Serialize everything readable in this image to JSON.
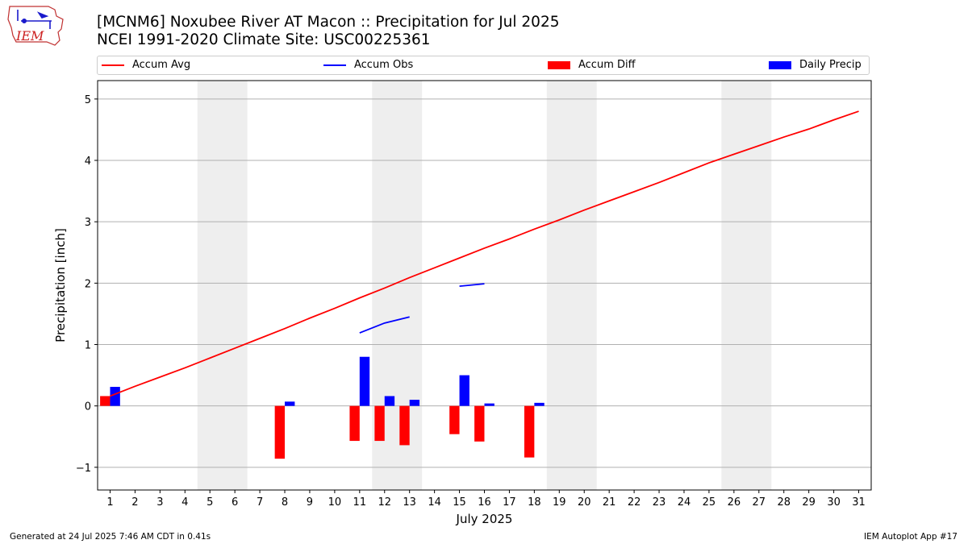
{
  "header": {
    "title_line1": "[MCNM6] Noxubee River  AT Macon :: Precipitation for Jul 2025",
    "title_line2": "NCEI 1991-2020 Climate Site: USC00225361",
    "logo_text": "IEM"
  },
  "legend": {
    "placement": "top",
    "items": [
      {
        "label": "Accum Avg",
        "color": "#ff0000",
        "kind": "line"
      },
      {
        "label": "Accum Obs",
        "color": "#0000ff",
        "kind": "line"
      },
      {
        "label": "Accum Diff",
        "color": "#ff0000",
        "kind": "bar"
      },
      {
        "label": "Daily Precip",
        "color": "#0000ff",
        "kind": "bar"
      }
    ]
  },
  "footer": {
    "left": "Generated at 24 Jul 2025 7:46 AM CDT in 0.41s",
    "right": "IEM Autoplot App #17"
  },
  "chart_data": {
    "type": "bar",
    "xlabel": "July 2025",
    "ylabel": "Precipitation [inch]",
    "xlim": [
      0.5,
      31.5
    ],
    "ylim": [
      -1.37,
      5.3
    ],
    "grid": "horizontal",
    "x_ticks": [
      1,
      2,
      3,
      4,
      5,
      6,
      7,
      8,
      9,
      10,
      11,
      12,
      13,
      14,
      15,
      16,
      17,
      18,
      19,
      20,
      21,
      22,
      23,
      24,
      25,
      26,
      27,
      28,
      29,
      30,
      31
    ],
    "y_ticks": [
      -1,
      0,
      1,
      2,
      3,
      4,
      5
    ],
    "y_tick_labels": [
      "−1",
      "0",
      "1",
      "2",
      "3",
      "4",
      "5"
    ],
    "weekend_shading": [
      [
        4.5,
        6.5
      ],
      [
        11.5,
        13.5
      ],
      [
        18.5,
        20.5
      ],
      [
        25.5,
        27.5
      ]
    ],
    "shading_color": "#eeeeee",
    "accum_avg": {
      "name": "Accum Avg",
      "color": "#ff0000",
      "x": [
        1,
        2,
        3,
        4,
        5,
        6,
        7,
        8,
        9,
        10,
        11,
        12,
        13,
        14,
        15,
        16,
        17,
        18,
        19,
        20,
        21,
        22,
        23,
        24,
        25,
        26,
        27,
        28,
        29,
        30,
        31
      ],
      "values": [
        0.16,
        0.32,
        0.47,
        0.62,
        0.78,
        0.94,
        1.1,
        1.26,
        1.43,
        1.59,
        1.76,
        1.92,
        2.09,
        2.25,
        2.41,
        2.57,
        2.72,
        2.88,
        3.03,
        3.19,
        3.34,
        3.49,
        3.64,
        3.8,
        3.96,
        4.1,
        4.24,
        4.38,
        4.51,
        4.66,
        4.8
      ]
    },
    "accum_obs": {
      "name": "Accum Obs",
      "color": "#0000ff",
      "segments": [
        {
          "x": [
            11,
            12,
            13
          ],
          "values": [
            1.19,
            1.35,
            1.45
          ]
        },
        {
          "x": [
            15,
            16
          ],
          "values": [
            1.95,
            1.99
          ]
        }
      ]
    },
    "accum_diff": {
      "name": "Accum Diff",
      "color": "#ff0000",
      "x": [
        1,
        8,
        11,
        12,
        13,
        15,
        16,
        18
      ],
      "values": [
        0.16,
        -0.86,
        -0.57,
        -0.57,
        -0.64,
        -0.46,
        -0.58,
        -0.84
      ]
    },
    "daily_precip": {
      "name": "Daily Precip",
      "color": "#0000ff",
      "x": [
        1,
        8,
        11,
        12,
        13,
        15,
        16,
        18
      ],
      "values": [
        0.31,
        0.07,
        0.8,
        0.16,
        0.1,
        0.5,
        0.04,
        0.05
      ]
    }
  }
}
